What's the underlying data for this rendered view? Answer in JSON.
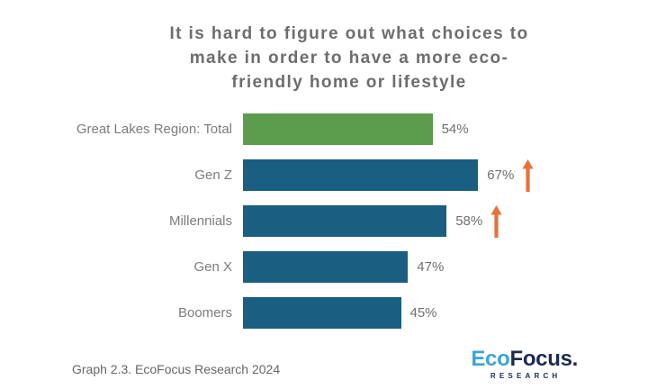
{
  "colors": {
    "title_text": "#6d6d6d",
    "category_text": "#7c7c7c",
    "value_text": "#6f6f6f",
    "green_bar": "#5b9c4d",
    "blue_bar": "#1a5e81",
    "arrow_orange": "#e7713b",
    "logo_light_blue": "#3ea3d8",
    "logo_navy": "#1c2b4d",
    "caption_text": "#666666"
  },
  "chart_data": {
    "type": "bar",
    "orientation": "horizontal",
    "title": "It is hard to figure out what choices to make in order to have a more eco-friendly home or lifestyle",
    "title_lines": [
      "It is hard to figure out what choices to",
      "make in order to have a more eco-",
      "friendly home or lifestyle"
    ],
    "categories": [
      "Great Lakes Region: Total",
      "Gen Z",
      "Millennials",
      "Gen X",
      "Boomers"
    ],
    "values": [
      54,
      67,
      58,
      47,
      45
    ],
    "xlim": [
      0,
      100
    ],
    "grid": false,
    "legend": "none",
    "rows": [
      {
        "label": "Great Lakes Region: Total",
        "value": 54,
        "value_label": "54%",
        "color": "#5b9c4d",
        "trend_arrow": false
      },
      {
        "label": "Gen Z",
        "value": 67,
        "value_label": "67%",
        "color": "#1a5e81",
        "trend_arrow": true
      },
      {
        "label": "Millennials",
        "value": 58,
        "value_label": "58%",
        "color": "#1a5e81",
        "trend_arrow": true
      },
      {
        "label": "Gen X",
        "value": 47,
        "value_label": "47%",
        "color": "#1a5e81",
        "trend_arrow": false
      },
      {
        "label": "Boomers",
        "value": 45,
        "value_label": "45%",
        "color": "#1a5e81",
        "trend_arrow": false
      }
    ]
  },
  "footer": {
    "caption": "Graph 2.3. EcoFocus Research 2024",
    "logo": {
      "eco": "Eco",
      "focus": "Focus.",
      "subtitle": "RESEARCH"
    }
  }
}
